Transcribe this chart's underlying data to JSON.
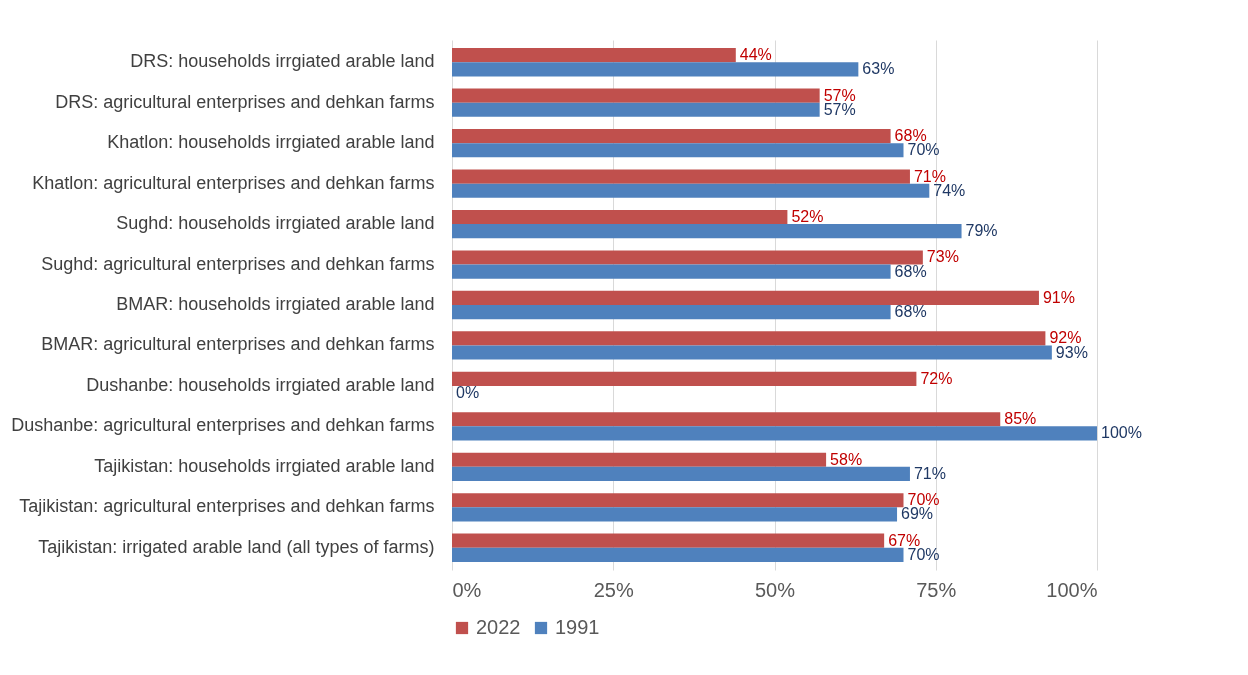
{
  "chart_data": {
    "type": "bar",
    "orientation": "horizontal",
    "categories": [
      "DRS: households irrgiated arable land",
      "DRS: agricultural enterprises and dehkan farms",
      "Khatlon: households irrgiated arable land",
      "Khatlon: agricultural enterprises and dehkan farms",
      "Sughd: households irrgiated arable land",
      "Sughd: agricultural enterprises and dehkan farms",
      "BMAR: households irrgiated arable land",
      "BMAR: agricultural enterprises and dehkan farms",
      "Dushanbe: households irrgiated arable land",
      "Dushanbe: agricultural enterprises and dehkan farms",
      "Tajikistan: households irrgiated arable land",
      "Tajikistan: agricultural enterprises and dehkan farms",
      "Tajikistan: irrigated arable land (all types of farms)"
    ],
    "series": [
      {
        "name": "2022",
        "color": "#c0504d",
        "values": [
          44,
          57,
          68,
          71,
          52,
          73,
          91,
          92,
          72,
          85,
          58,
          70,
          67
        ],
        "value_labels": [
          "44%",
          "57%",
          "68%",
          "71%",
          "52%",
          "73%",
          "91%",
          "92%",
          "72%",
          "85%",
          "58%",
          "70%",
          "67%"
        ]
      },
      {
        "name": "1991",
        "color": "#4f81bd",
        "values": [
          63,
          57,
          70,
          74,
          79,
          68,
          68,
          93,
          0,
          100,
          71,
          69,
          70
        ],
        "value_labels": [
          "63%",
          "57%",
          "70%",
          "74%",
          "79%",
          "68%",
          "68%",
          "93%",
          "0%",
          "100%",
          "71%",
          "69%",
          "70%"
        ]
      }
    ],
    "xlim": [
      0,
      100
    ],
    "xticks": [
      {
        "value": 0,
        "label": "0%"
      },
      {
        "value": 25,
        "label": "25%"
      },
      {
        "value": 50,
        "label": "50%"
      },
      {
        "value": 75,
        "label": "75%"
      },
      {
        "value": 100,
        "label": "100%"
      }
    ],
    "grid": "x",
    "legend": "bottom"
  }
}
